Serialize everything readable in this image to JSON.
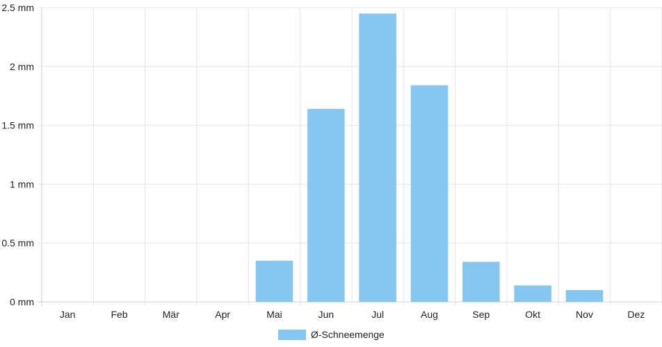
{
  "chart_data": {
    "type": "bar",
    "categories": [
      "Jan",
      "Feb",
      "Mär",
      "Apr",
      "Mai",
      "Jun",
      "Jul",
      "Aug",
      "Sep",
      "Okt",
      "Nov",
      "Dez"
    ],
    "series": [
      {
        "name": "Ø-Schneemenge",
        "values": [
          0,
          0,
          0,
          0,
          0.35,
          1.64,
          2.45,
          1.84,
          0.34,
          0.14,
          0.1,
          0
        ]
      }
    ],
    "y_ticks": [
      "0 mm",
      "0.5 mm",
      "1 mm",
      "1.5 mm",
      "2 mm",
      "2.5 mm"
    ],
    "ylim": [
      0,
      2.5
    ],
    "grid": true,
    "legend_position": "bottom",
    "colors": {
      "bar": "#88c6f2",
      "grid": "#e4e4e4",
      "axis": "#cfcfcf"
    }
  }
}
